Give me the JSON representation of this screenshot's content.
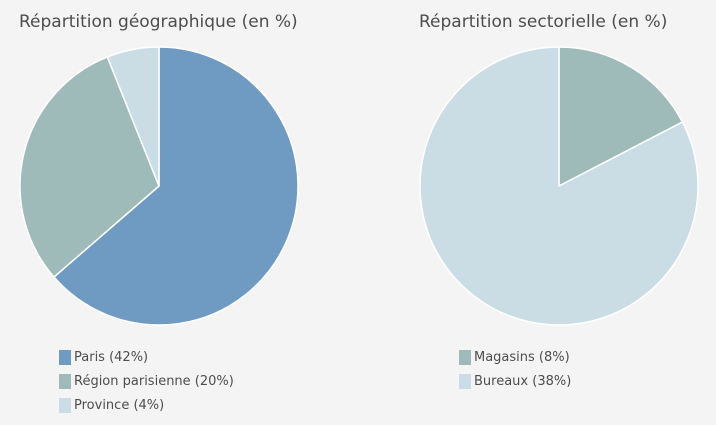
{
  "chart_data": [
    {
      "type": "pie",
      "title": "Répartition géographique (en %)",
      "slices": [
        {
          "label": "Paris (42%)",
          "value": 42,
          "color": "#6f9bc3"
        },
        {
          "label": "Région parisienne (20%)",
          "value": 20,
          "color": "#9ebbb9"
        },
        {
          "label": "Province (4%)",
          "value": 4,
          "color": "#cadde5"
        }
      ]
    },
    {
      "type": "pie",
      "title": "Répartition sectorielle (en %)",
      "slices": [
        {
          "label": "Magasins (8%)",
          "value": 8,
          "color": "#9ebbb9"
        },
        {
          "label": "Bureaux (38%)",
          "value": 38,
          "color": "#cadde5"
        }
      ]
    }
  ]
}
